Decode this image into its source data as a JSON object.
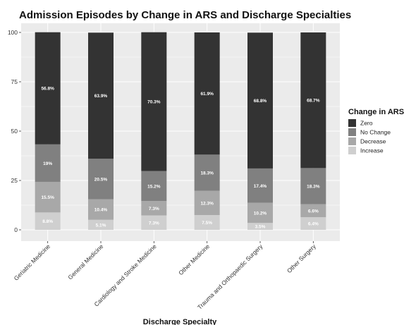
{
  "chart_data": {
    "type": "bar",
    "stacked": true,
    "title": "Admission Episodes by Change in ARS and Discharge Specialties",
    "xlabel": "Discharge Specialty",
    "ylabel": "",
    "ylim": [
      0,
      100
    ],
    "yticks": [
      0,
      25,
      50,
      75,
      100
    ],
    "grid": true,
    "legend": {
      "title": "Change in ARS",
      "position": "right"
    },
    "categories": [
      "Geriatric Medicine",
      "General Medicine",
      "Cardiology and Stroke Medicine",
      "Other Medicine",
      "Trauma and Orthopaedic Surgery",
      "Other Surgery"
    ],
    "series": [
      {
        "name": "Increase",
        "color": "#cfcfcf",
        "values": [
          8.8,
          5.1,
          7.3,
          7.5,
          3.5,
          6.4
        ],
        "labels": [
          "8.8%",
          "5.1%",
          "7.3%",
          "7.5%",
          "3.5%",
          "6.4%"
        ]
      },
      {
        "name": "Decrease",
        "color": "#a8a8a8",
        "values": [
          15.5,
          10.4,
          7.3,
          12.3,
          10.2,
          6.6
        ],
        "labels": [
          "15.5%",
          "10.4%",
          "7.3%",
          "12.3%",
          "10.2%",
          "6.6%"
        ]
      },
      {
        "name": "No Change",
        "color": "#808080",
        "values": [
          19,
          20.5,
          15.2,
          18.3,
          17.4,
          18.3
        ],
        "labels": [
          "19%",
          "20.5%",
          "15.2%",
          "18.3%",
          "17.4%",
          "18.3%"
        ]
      },
      {
        "name": "Zero",
        "color": "#333333",
        "values": [
          56.8,
          63.9,
          70.3,
          61.9,
          68.8,
          68.7
        ],
        "labels": [
          "56.8%",
          "63.9%",
          "70.3%",
          "61.9%",
          "68.8%",
          "68.7%"
        ]
      }
    ],
    "legend_order": [
      "Zero",
      "No Change",
      "Decrease",
      "Increase"
    ]
  },
  "panel_color": "#ebebeb",
  "grid_color": "#ffffff"
}
